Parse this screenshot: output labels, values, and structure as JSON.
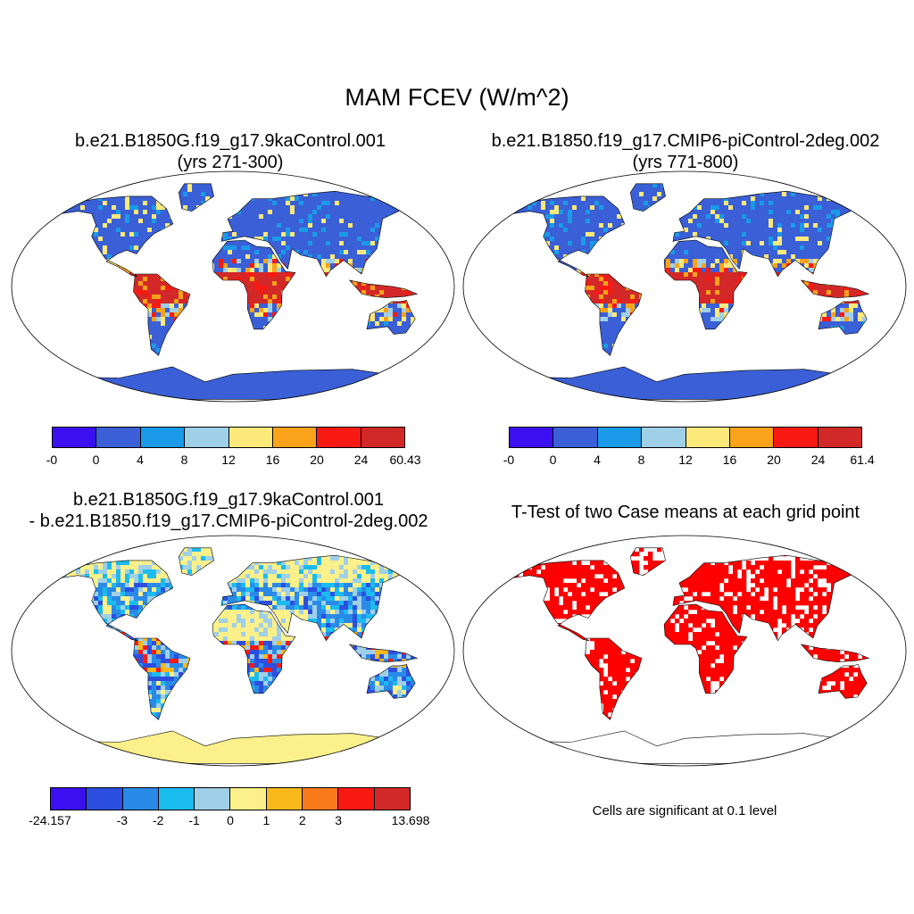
{
  "title": "MAM FCEV (W/m^2)",
  "panels": {
    "p1": {
      "title_line1": "b.e21.B1850G.f19_g17.9kaControl.001",
      "title_line2": "(yrs 271-300)"
    },
    "p2": {
      "title_line1": "b.e21.B1850.f19_g17.CMIP6-piControl-2deg.002",
      "title_line2": "(yrs 771-800)"
    },
    "p3": {
      "title_line1": "b.e21.B1850G.f19_g17.9kaControl.001",
      "title_line2": "- b.e21.B1850.f19_g17.CMIP6-piControl-2deg.002"
    },
    "p4": {
      "title_line1": "T-Test of two Case means at each grid point",
      "note": "Cells are significant at 0.1 level"
    }
  },
  "colorbars": {
    "cb1": {
      "labels": [
        "-0",
        "0",
        "4",
        "8",
        "12",
        "16",
        "20",
        "24",
        "60.43"
      ],
      "colors": [
        "#3a10f0",
        "#3a5fd6",
        "#1a9ae8",
        "#a0cfe8",
        "#fbe97a",
        "#f9a21a",
        "#f81a12",
        "#d32828"
      ]
    },
    "cb2": {
      "labels": [
        "-0",
        "0",
        "4",
        "8",
        "12",
        "16",
        "20",
        "24",
        "61.4"
      ],
      "colors": [
        "#3a10f0",
        "#3a5fd6",
        "#1a9ae8",
        "#a0cfe8",
        "#fbe97a",
        "#f9a21a",
        "#f81a12",
        "#d32828"
      ]
    },
    "cb3": {
      "labels": [
        "-24.157",
        "-3",
        "-2",
        "-1",
        "0",
        "1",
        "2",
        "3",
        "13.698"
      ],
      "colors": [
        "#3a10f0",
        "#2c4fe0",
        "#2a8ae8",
        "#1abcf0",
        "#a0cfe8",
        "#fbf08a",
        "#f9b81a",
        "#f97a1a",
        "#f81a12",
        "#d32828"
      ]
    }
  },
  "map_colors": {
    "ocean": "#ffffff",
    "coast": "#000000",
    "sig": "#ff0000"
  }
}
